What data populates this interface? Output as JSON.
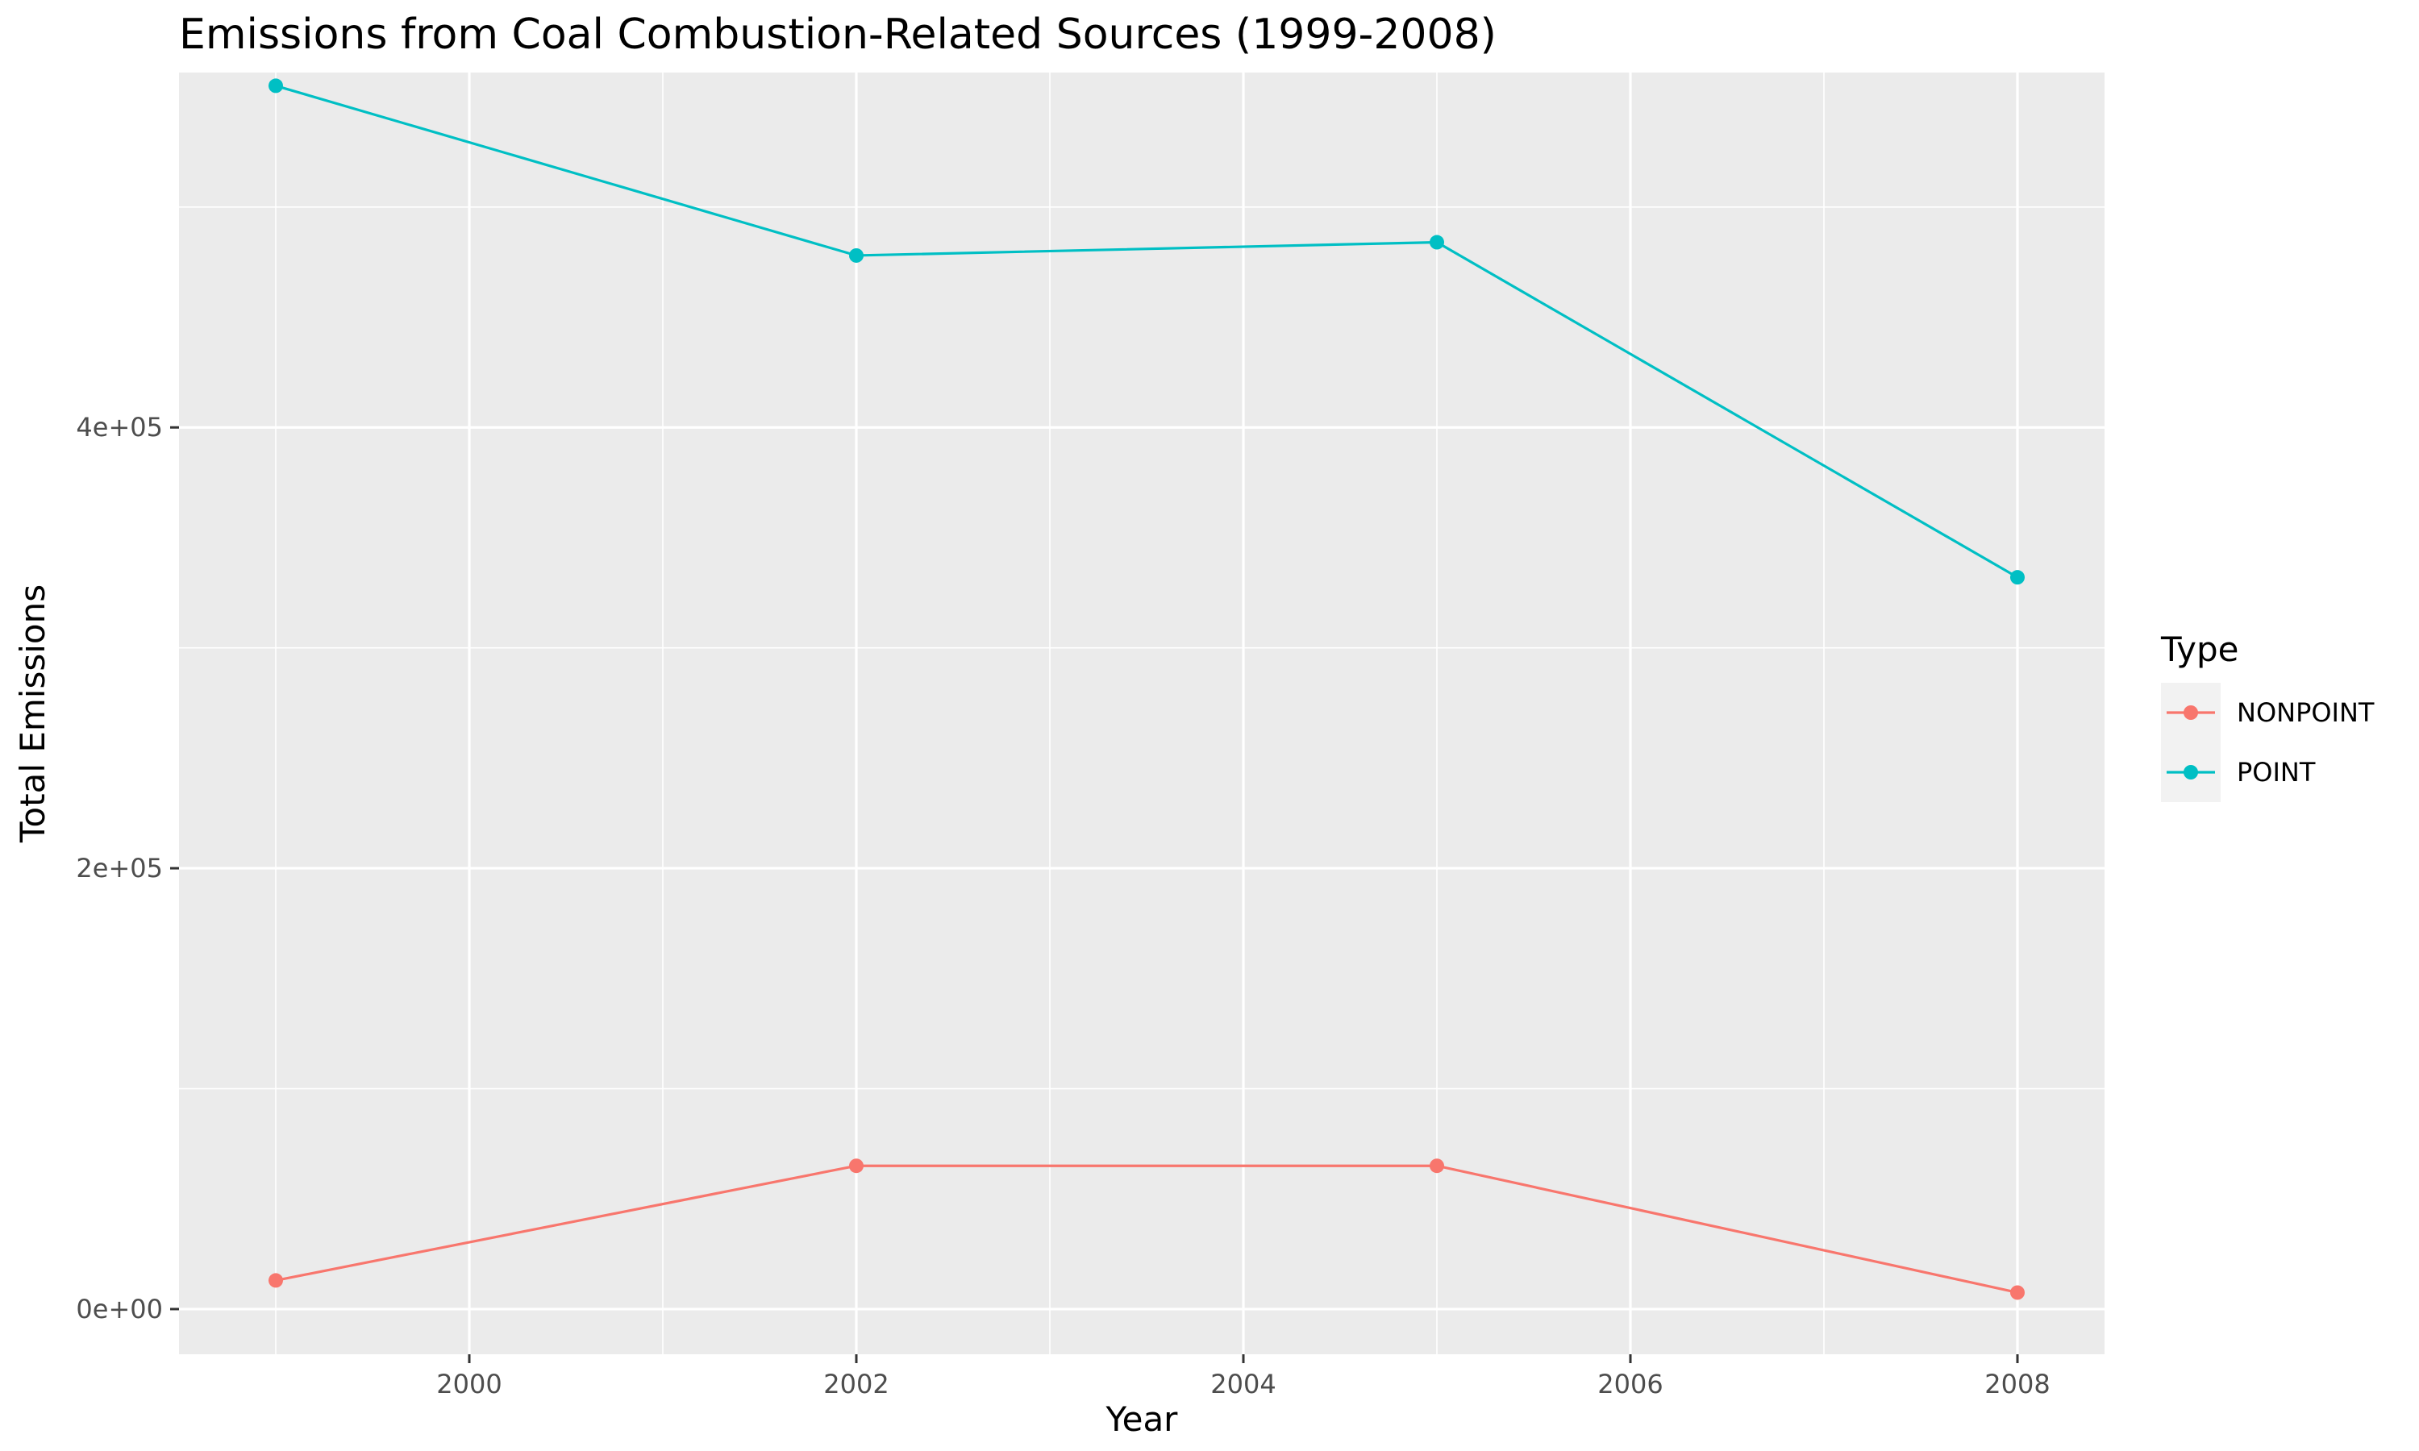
{
  "chart_data": {
    "type": "line",
    "title": "Emissions from Coal Combustion-Related Sources (1999-2008)",
    "xlabel": "Year",
    "ylabel": "Total Emissions",
    "x": [
      1999,
      2002,
      2005,
      2008
    ],
    "xlim": [
      1998.5,
      2008.45
    ],
    "ylim": [
      -20500,
      561000
    ],
    "xticks": [
      2000,
      2002,
      2004,
      2006,
      2008
    ],
    "xtick_labels": [
      "2000",
      "2002",
      "2004",
      "2006",
      "2008"
    ],
    "yticks": [
      0,
      200000,
      400000
    ],
    "ytick_labels": [
      "0e+00",
      "2e+05",
      "4e+05"
    ],
    "grid": true,
    "legend": {
      "title": "Type",
      "position": "right",
      "entries": [
        "NONPOINT",
        "POINT"
      ]
    },
    "series": [
      {
        "name": "NONPOINT",
        "color": "#F8766D",
        "values": [
          13000,
          65000,
          65000,
          7500
        ]
      },
      {
        "name": "POINT",
        "color": "#00BFC4",
        "values": [
          555000,
          478000,
          484000,
          332000
        ]
      }
    ]
  }
}
